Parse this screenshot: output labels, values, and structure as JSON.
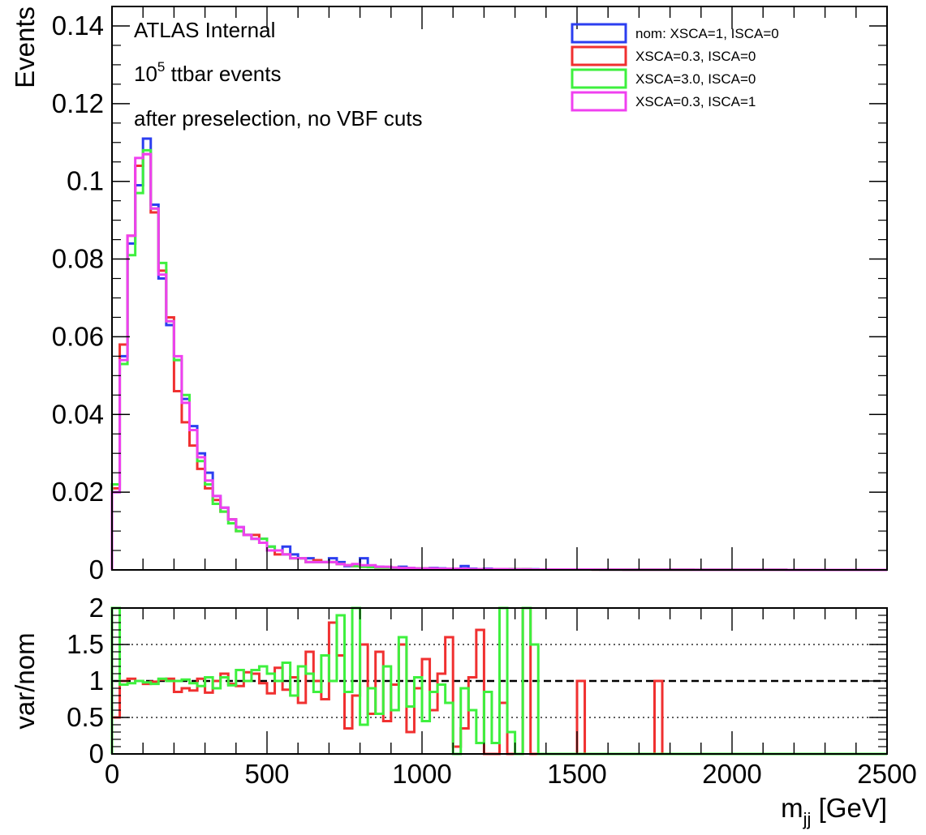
{
  "annotations": {
    "atlas": "ATLAS Internal",
    "events_base": "10",
    "events_exp": "5",
    "events_rest": " ttbar events",
    "selection": "after preselection, no VBF cuts"
  },
  "colors": {
    "nom": "#2b3ef0",
    "xsca03": "#f03030",
    "xsca30": "#3ef03e",
    "xsca03_isca1": "#f040f0"
  },
  "chart_data": [
    {
      "type": "line",
      "drawstyle": "histogram-step",
      "ylabel": "Events",
      "xlim": [
        0,
        2500
      ],
      "ylim": [
        0,
        0.145
      ],
      "yticks": [
        0,
        0.02,
        0.04,
        0.06,
        0.08,
        0.1,
        0.12,
        0.14
      ],
      "ytick_labels": [
        "0",
        "0.02",
        "0.04",
        "0.06",
        "0.08",
        "0.1",
        "0.12",
        "0.14"
      ],
      "bin_width": 25,
      "x": [
        0,
        25,
        50,
        75,
        100,
        125,
        150,
        175,
        200,
        225,
        250,
        275,
        300,
        325,
        350,
        375,
        400,
        425,
        450,
        475,
        500,
        525,
        550,
        575,
        600,
        625,
        650,
        675,
        700,
        725,
        750,
        775,
        800,
        825,
        850,
        875,
        900,
        925,
        950,
        975,
        1000,
        1025,
        1050,
        1075,
        1100,
        1125,
        1150,
        1175,
        1200,
        1225,
        1250,
        1275,
        1300,
        1325,
        1350,
        1375,
        1400,
        1425,
        1450,
        1475,
        1500,
        1525,
        1550,
        1575,
        1600,
        1625,
        1650,
        1675,
        1700,
        1725,
        1750,
        1775,
        1800,
        1825,
        1850,
        1875,
        1900,
        1925,
        1950,
        1975,
        2000,
        2025,
        2050,
        2075,
        2100,
        2125,
        2150,
        2175,
        2200,
        2225,
        2250,
        2275,
        2300,
        2325,
        2350,
        2375,
        2400,
        2425,
        2450,
        2475
      ],
      "legend_position": "top-right",
      "series": [
        {
          "name": "nom: XSCA=1, ISCA=0",
          "color": "#2b3ef0",
          "values": [
            0.02,
            0.055,
            0.084,
            0.099,
            0.111,
            0.094,
            0.075,
            0.063,
            0.054,
            0.044,
            0.037,
            0.03,
            0.025,
            0.019,
            0.016,
            0.013,
            0.011,
            0.009,
            0.008,
            0.008,
            0.006,
            0.005,
            0.006,
            0.004,
            0.003,
            0.003,
            0.002,
            0.002,
            0.003,
            0.002,
            0.001,
            0.001,
            0.003,
            0.001,
            0.0008,
            0.0007,
            0.0006,
            0.0008,
            0.0005,
            0.0004,
            0.0004,
            0.0005,
            0.0004,
            0.0003,
            0.0003,
            0.001,
            0.0003,
            0.0002,
            0.0003,
            0.0002,
            0.0002,
            0.0002,
            0.00015,
            0.0002,
            0.00015,
            0.0001,
            0.0001,
            0.0001,
            0.0001,
            0.0001,
            0.0001,
            0.0001,
            0.0001,
            8e-05,
            8e-05,
            7e-05,
            6e-05,
            6e-05,
            5e-05,
            5e-05,
            5e-05,
            5e-05,
            4e-05,
            4e-05,
            4e-05,
            3e-05,
            3e-05,
            3e-05,
            3e-05,
            3e-05,
            2e-05,
            2e-05,
            2e-05,
            2e-05,
            2e-05,
            2e-05,
            2e-05,
            1e-05,
            1e-05,
            1e-05,
            1e-05,
            1e-05,
            1e-05,
            1e-05,
            1e-05,
            1e-05,
            1e-05,
            1e-05,
            1e-05,
            1e-05
          ]
        },
        {
          "name": "XSCA=0.3, ISCA=0",
          "color": "#f03030",
          "values": [
            0.021,
            0.058,
            0.086,
            0.104,
            0.107,
            0.092,
            0.077,
            0.065,
            0.046,
            0.038,
            0.032,
            0.026,
            0.021,
            0.018,
            0.015,
            0.013,
            0.01,
            0.009,
            0.009,
            0.007,
            0.005,
            0.004,
            0.004,
            0.003,
            0.003,
            0.002,
            0.0025,
            0.002,
            0.002,
            0.0015,
            0.0012,
            0.001,
            0.0008,
            0.0008,
            0.0006,
            0.0006,
            0.0006,
            0.0005,
            0.0004,
            0.0004,
            0.0004,
            0.0003,
            0.0003,
            0.0003,
            0.0003,
            0.0002,
            0.0002,
            0.0002,
            0.0002,
            0.0002,
            0.0002,
            0.00015,
            0.00015,
            0.00015,
            0.0001,
            0.0001,
            0.0001,
            0.0001,
            0.0001,
            0.0001,
            0.0001,
            0.0001,
            8e-05,
            8e-05,
            7e-05,
            7e-05,
            6e-05,
            6e-05,
            5e-05,
            5e-05,
            5e-05,
            5e-05,
            4e-05,
            4e-05,
            4e-05,
            3e-05,
            3e-05,
            3e-05,
            3e-05,
            3e-05,
            2e-05,
            2e-05,
            2e-05,
            2e-05,
            2e-05,
            2e-05,
            2e-05,
            1e-05,
            1e-05,
            1e-05,
            1e-05,
            1e-05,
            1e-05,
            1e-05,
            1e-05,
            1e-05,
            1e-05,
            1e-05,
            1e-05,
            1e-05
          ]
        },
        {
          "name": "XSCA=3.0, ISCA=0",
          "color": "#3ef03e",
          "values": [
            0.022,
            0.053,
            0.081,
            0.097,
            0.108,
            0.093,
            0.079,
            0.064,
            0.054,
            0.045,
            0.036,
            0.028,
            0.022,
            0.017,
            0.015,
            0.012,
            0.01,
            0.009,
            0.008,
            0.008,
            0.006,
            0.005,
            0.004,
            0.003,
            0.003,
            0.002,
            0.002,
            0.002,
            0.002,
            0.0015,
            0.0012,
            0.001,
            0.0008,
            0.0007,
            0.0006,
            0.0006,
            0.0005,
            0.0005,
            0.0004,
            0.0004,
            0.0004,
            0.0003,
            0.0003,
            0.0003,
            0.0002,
            0.0002,
            0.0002,
            0.0002,
            0.0002,
            0.0002,
            0.00015,
            0.00015,
            0.00015,
            0.00015,
            0.0001,
            0.0001,
            0.0001,
            0.0001,
            0.0001,
            0.0001,
            0.0001,
            0.0001,
            8e-05,
            8e-05,
            7e-05,
            7e-05,
            6e-05,
            6e-05,
            5e-05,
            5e-05,
            5e-05,
            5e-05,
            4e-05,
            4e-05,
            4e-05,
            3e-05,
            3e-05,
            3e-05,
            3e-05,
            3e-05,
            2e-05,
            2e-05,
            2e-05,
            2e-05,
            2e-05,
            2e-05,
            2e-05,
            1e-05,
            1e-05,
            1e-05,
            1e-05,
            1e-05,
            1e-05,
            1e-05,
            1e-05,
            1e-05,
            1e-05,
            1e-05,
            1e-05,
            1e-05
          ]
        },
        {
          "name": "XSCA=0.3, ISCA=1",
          "color": "#f040f0",
          "values": [
            0.02,
            0.054,
            0.086,
            0.106,
            0.107,
            0.093,
            0.076,
            0.064,
            0.055,
            0.043,
            0.036,
            0.029,
            0.023,
            0.019,
            0.016,
            0.013,
            0.011,
            0.009,
            0.008,
            0.007,
            0.005,
            0.005,
            0.004,
            0.003,
            0.003,
            0.002,
            0.002,
            0.002,
            0.002,
            0.0015,
            0.0012,
            0.0015,
            0.0012,
            0.0012,
            0.0008,
            0.0008,
            0.0006,
            0.0005,
            0.0005,
            0.0004,
            0.0004,
            0.0004,
            0.0003,
            0.0003,
            0.0003,
            0.0003,
            0.0002,
            0.0002,
            0.0002,
            0.0002,
            0.0002,
            0.00015,
            0.00015,
            0.00015,
            0.0001,
            0.0001,
            0.0001,
            0.0001,
            0.0001,
            0.0001,
            0.0001,
            0.0001,
            8e-05,
            8e-05,
            7e-05,
            7e-05,
            6e-05,
            6e-05,
            5e-05,
            5e-05,
            5e-05,
            5e-05,
            4e-05,
            4e-05,
            4e-05,
            3e-05,
            3e-05,
            3e-05,
            3e-05,
            3e-05,
            2e-05,
            2e-05,
            2e-05,
            2e-05,
            2e-05,
            2e-05,
            2e-05,
            1e-05,
            1e-05,
            1e-05,
            1e-05,
            1e-05,
            1e-05,
            1e-05,
            1e-05,
            1e-05,
            1e-05,
            1e-05,
            1e-05,
            1e-05
          ]
        }
      ]
    },
    {
      "type": "line",
      "drawstyle": "histogram-step",
      "ylabel": "var/nom",
      "xlabel_base": "m",
      "xlabel_sub": "jj",
      "xlabel_unit": " [GeV]",
      "xlim": [
        0,
        2500
      ],
      "ylim": [
        0,
        2
      ],
      "yticks": [
        0,
        0.5,
        1,
        1.5,
        2
      ],
      "ytick_labels": [
        "0",
        "0.5",
        "1",
        "1.5",
        "2"
      ],
      "xticks": [
        0,
        500,
        1000,
        1500,
        2000,
        2500
      ],
      "xtick_labels": [
        "0",
        "500",
        "1000",
        "1500",
        "2000",
        "2500"
      ],
      "reference_line": 1,
      "dotted_gridlines": [
        0.5,
        1.5,
        2
      ],
      "bin_width": 25,
      "x": [
        0,
        25,
        50,
        75,
        100,
        125,
        150,
        175,
        200,
        225,
        250,
        275,
        300,
        325,
        350,
        375,
        400,
        425,
        450,
        475,
        500,
        525,
        550,
        575,
        600,
        625,
        650,
        675,
        700,
        725,
        750,
        775,
        800,
        825,
        850,
        875,
        900,
        925,
        950,
        975,
        1000,
        1025,
        1050,
        1075,
        1100,
        1125,
        1150,
        1175,
        1200,
        1225,
        1250,
        1275,
        1300,
        1325,
        1350,
        1375,
        1400,
        1425,
        1450,
        1475,
        1500,
        1525,
        1550,
        1575,
        1600,
        1625,
        1650,
        1675,
        1700,
        1725,
        1750,
        1775,
        1800,
        1825,
        1850,
        1875,
        1900,
        1925,
        1950,
        1975,
        2000,
        2025,
        2050,
        2075,
        2100,
        2125,
        2150,
        2175,
        2200,
        2225,
        2250,
        2275,
        2300,
        2325,
        2350,
        2375,
        2400,
        2425,
        2450,
        2475
      ],
      "series": [
        {
          "name": "XSCA=0.3, ISCA=0",
          "color": "#f03030",
          "values": [
            0.5,
            1.0,
            1.03,
            1.0,
            0.96,
            0.99,
            1.02,
            1.03,
            0.85,
            0.9,
            0.87,
            1.03,
            0.84,
            1.0,
            1.1,
            0.96,
            0.93,
            1.12,
            1.1,
            0.97,
            0.83,
            1.18,
            0.88,
            1.05,
            0.7,
            1.4,
            1.0,
            0.75,
            1.8,
            1.35,
            0.35,
            0.8,
            1.5,
            0.55,
            1.4,
            0.45,
            0.95,
            1.5,
            0.3,
            0.9,
            1.3,
            0.6,
            1.1,
            1.6,
            0.1,
            0.35,
            1.05,
            1.7,
            0,
            0.0,
            0.7,
            0,
            0,
            2.0,
            0,
            0,
            0,
            0,
            0,
            0,
            1.0,
            0,
            0,
            0,
            0,
            0,
            0,
            0,
            0,
            0,
            1.0,
            0,
            0,
            0,
            0,
            0,
            0,
            0,
            0,
            0,
            0,
            0,
            0,
            0,
            0,
            0,
            0,
            0,
            0,
            0,
            0,
            0,
            0,
            0,
            0,
            0,
            0,
            0,
            0,
            0
          ]
        },
        {
          "name": "XSCA=3.0, ISCA=0",
          "color": "#3ef03e",
          "values": [
            2.0,
            0.95,
            0.97,
            1.0,
            0.98,
            0.96,
            1.03,
            1.0,
            1.0,
            1.02,
            0.97,
            0.93,
            1.05,
            0.9,
            1.05,
            0.94,
            1.15,
            1.0,
            1.15,
            1.2,
            1.1,
            1.0,
            1.25,
            0.8,
            1.2,
            1.1,
            0.85,
            1.35,
            1.0,
            1.9,
            0.85,
            2.0,
            0.4,
            0.9,
            0.55,
            1.2,
            0.6,
            1.6,
            0.65,
            1.05,
            0.45,
            0.85,
            0.95,
            0.7,
            0,
            0.9,
            0.6,
            0.15,
            0.85,
            0.15,
            2.0,
            0.3,
            0,
            2.0,
            1.5,
            0,
            0,
            0,
            0,
            0,
            0,
            0,
            0,
            0,
            0,
            0,
            0,
            0,
            0,
            0,
            0,
            0,
            0,
            0,
            0,
            0,
            0,
            0,
            0,
            0,
            0,
            0,
            0,
            0,
            0,
            0,
            0,
            0,
            0,
            0,
            0,
            0,
            0,
            0,
            0,
            0,
            0,
            0,
            0,
            0
          ]
        }
      ]
    }
  ]
}
